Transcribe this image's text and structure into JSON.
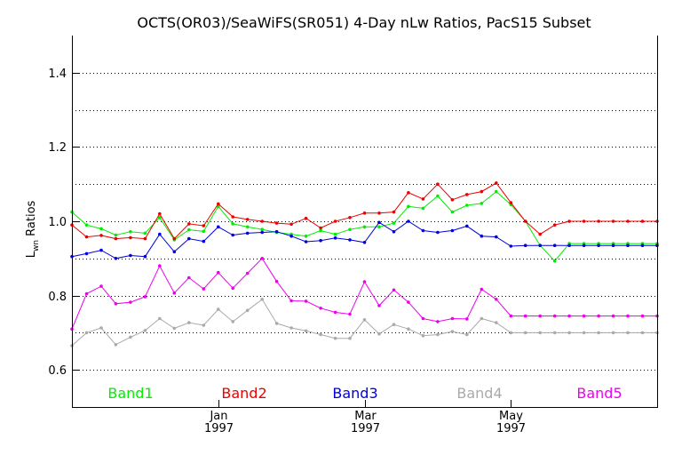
{
  "chart_data": {
    "type": "line",
    "title": "OCTS(OR03)/SeaWiFS(SR051) 4-Day nLw Ratios, PacS15 Subset",
    "ylabel_main": "L",
    "ylabel_sub": "wn",
    "ylabel_rest": " Ratios",
    "xlabel": "",
    "xlim": [
      0,
      40
    ],
    "ylim": [
      0.5,
      1.5
    ],
    "yticks": [
      0.6,
      0.8,
      1.0,
      1.2,
      1.4
    ],
    "ytick_labels": [
      "0.6",
      "0.8",
      "1.0",
      "1.2",
      "1.4"
    ],
    "y_minor_step": 0.1,
    "x_ticks": [
      {
        "pos": 10,
        "label": "Jan",
        "year": "1997"
      },
      {
        "pos": 20,
        "label": "Mar",
        "year": "1997"
      },
      {
        "pos": 30,
        "label": "May",
        "year": "1997"
      }
    ],
    "grid": true,
    "legend_position": "bottom",
    "x": [
      0,
      1,
      2,
      3,
      4,
      5,
      6,
      7,
      8,
      9,
      10,
      11,
      12,
      13,
      14,
      15,
      16,
      17,
      18,
      19,
      20,
      21,
      22,
      23,
      24,
      25,
      26,
      27,
      28,
      29,
      30,
      31,
      32,
      33,
      34,
      35,
      36,
      37,
      38,
      39,
      40
    ],
    "series": [
      {
        "name": "Band1",
        "color": "#00ee00",
        "x": [
          0,
          1,
          2,
          3,
          4,
          5,
          6,
          7,
          8,
          9,
          10,
          11,
          12,
          13,
          14,
          15,
          16,
          17,
          18,
          19,
          20,
          21,
          22,
          23,
          24,
          25,
          26,
          27,
          28,
          29,
          30,
          31,
          32,
          33,
          34,
          35,
          36,
          37,
          38,
          39,
          40
        ],
        "values": [
          1.025,
          0.99,
          0.98,
          0.963,
          0.972,
          0.968,
          1.01,
          0.95,
          0.977,
          0.973,
          1.04,
          0.993,
          0.985,
          0.978,
          0.97,
          0.965,
          0.96,
          0.975,
          0.965,
          0.978,
          0.985,
          0.985,
          0.995,
          1.04,
          1.035,
          1.068,
          1.025,
          1.043,
          1.048,
          1.08,
          1.045,
          1.0,
          0.935,
          0.893,
          0.94,
          0.94,
          0.94,
          0.94,
          0.94,
          0.94,
          0.94
        ]
      },
      {
        "name": "Band2",
        "color": "#ee0000",
        "x": [
          0,
          1,
          2,
          3,
          4,
          5,
          6,
          7,
          8,
          9,
          10,
          11,
          12,
          13,
          14,
          15,
          16,
          17,
          18,
          19,
          20,
          21,
          22,
          23,
          24,
          25,
          26,
          27,
          28,
          29,
          30,
          31,
          32,
          33,
          34,
          35,
          36,
          37,
          38,
          39,
          40
        ],
        "values": [
          0.99,
          0.958,
          0.962,
          0.953,
          0.956,
          0.953,
          1.02,
          0.953,
          0.993,
          0.988,
          1.047,
          1.012,
          1.005,
          1.0,
          0.995,
          0.992,
          1.008,
          0.982,
          1.0,
          1.01,
          1.022,
          1.022,
          1.025,
          1.077,
          1.06,
          1.1,
          1.058,
          1.072,
          1.08,
          1.103,
          1.05,
          1.0,
          0.965,
          0.99,
          1.0,
          1.0,
          1.0,
          1.0,
          1.0,
          1.0,
          1.0
        ]
      },
      {
        "name": "Band3",
        "color": "#0000dd",
        "x": [
          0,
          1,
          2,
          3,
          4,
          5,
          6,
          7,
          8,
          9,
          10,
          11,
          12,
          13,
          14,
          15,
          16,
          17,
          18,
          19,
          20,
          21,
          22,
          23,
          24,
          25,
          26,
          27,
          28,
          29,
          30,
          31,
          32,
          33,
          34,
          35,
          36,
          37,
          38,
          39,
          40
        ],
        "values": [
          0.905,
          0.913,
          0.922,
          0.9,
          0.908,
          0.905,
          0.965,
          0.918,
          0.953,
          0.946,
          0.985,
          0.963,
          0.968,
          0.97,
          0.972,
          0.96,
          0.945,
          0.948,
          0.955,
          0.95,
          0.943,
          0.997,
          0.972,
          1.0,
          0.975,
          0.97,
          0.975,
          0.987,
          0.96,
          0.958,
          0.933,
          0.935,
          0.935,
          0.935,
          0.935,
          0.935,
          0.935,
          0.935,
          0.935,
          0.935,
          0.935
        ]
      },
      {
        "name": "Band4",
        "color": "#aaaaaa",
        "x": [
          0,
          1,
          2,
          3,
          4,
          5,
          6,
          7,
          8,
          9,
          10,
          11,
          12,
          13,
          14,
          15,
          16,
          17,
          18,
          19,
          20,
          21,
          22,
          23,
          24,
          25,
          26,
          27,
          28,
          29,
          30,
          31,
          32,
          33,
          34,
          35,
          36,
          37,
          38,
          39,
          40
        ],
        "values": [
          0.665,
          0.7,
          0.713,
          0.668,
          0.688,
          0.706,
          0.738,
          0.712,
          0.727,
          0.72,
          0.763,
          0.73,
          0.76,
          0.79,
          0.725,
          0.713,
          0.705,
          0.695,
          0.685,
          0.685,
          0.735,
          0.697,
          0.722,
          0.71,
          0.692,
          0.695,
          0.703,
          0.695,
          0.738,
          0.727,
          0.7,
          0.7,
          0.7,
          0.7,
          0.7,
          0.7,
          0.7,
          0.7,
          0.7,
          0.7,
          0.7
        ]
      },
      {
        "name": "Band5",
        "color": "#ee00ee",
        "x": [
          0,
          1,
          2,
          3,
          4,
          5,
          6,
          7,
          8,
          9,
          10,
          11,
          12,
          13,
          14,
          15,
          16,
          17,
          18,
          19,
          20,
          21,
          22,
          23,
          24,
          25,
          26,
          27,
          28,
          29,
          30,
          31,
          32,
          33,
          34,
          35,
          36,
          37,
          38,
          39,
          40
        ],
        "values": [
          0.71,
          0.805,
          0.825,
          0.778,
          0.782,
          0.797,
          0.88,
          0.807,
          0.848,
          0.818,
          0.862,
          0.82,
          0.86,
          0.9,
          0.838,
          0.786,
          0.785,
          0.766,
          0.755,
          0.75,
          0.837,
          0.773,
          0.815,
          0.782,
          0.738,
          0.73,
          0.738,
          0.737,
          0.817,
          0.79,
          0.745,
          0.745,
          0.745,
          0.745,
          0.745,
          0.745,
          0.745,
          0.745,
          0.745,
          0.745,
          0.745
        ]
      }
    ]
  }
}
